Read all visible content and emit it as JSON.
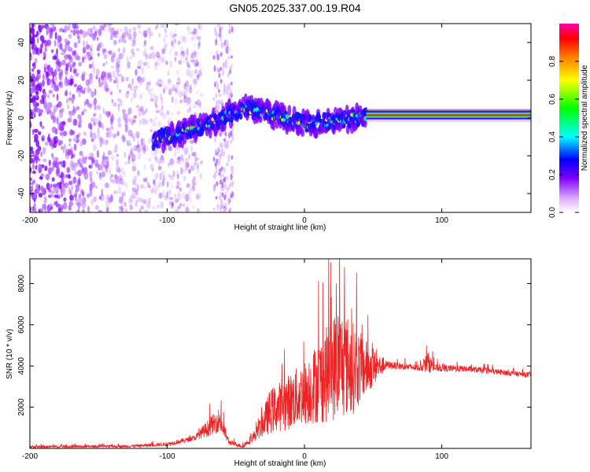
{
  "title": "GN05.2025.337.00.19.R04",
  "colorbar": {
    "label": "Normalized spectral amplitude",
    "ticks": [
      "0.0",
      "0.2",
      "0.4",
      "0.6",
      "0.8"
    ],
    "tick_values": [
      0.0,
      0.2,
      0.4,
      0.6,
      0.8
    ],
    "range": [
      0,
      1
    ]
  },
  "chart_data": [
    {
      "type": "heatmap",
      "title": "",
      "xlabel": "Height of straight line (km)",
      "ylabel": "Frequency (Hz)",
      "xlim": [
        -200,
        165
      ],
      "ylim": [
        -50,
        50
      ],
      "xticks": [
        -200,
        -100,
        0,
        100
      ],
      "xtick_labels": [
        "-200",
        "-100",
        "0",
        "100"
      ],
      "yticks": [
        -40,
        -20,
        0,
        20,
        40
      ],
      "ytick_labels": [
        "-40",
        "-20",
        "0",
        "20",
        "40"
      ],
      "description_of_data": {
        "noise_region_x": [
          -200,
          -90
        ],
        "strong_signal_start_x": -110,
        "signal_center_freq_hz": [
          {
            "x": -110,
            "f": -12
          },
          {
            "x": -90,
            "f": -8
          },
          {
            "x": -70,
            "f": -3
          },
          {
            "x": -55,
            "f": 2
          },
          {
            "x": -40,
            "f": 5
          },
          {
            "x": -20,
            "f": 1
          },
          {
            "x": 0,
            "f": -3
          },
          {
            "x": 20,
            "f": -2
          },
          {
            "x": 45,
            "f": 1
          },
          {
            "x": 165,
            "f": 1
          }
        ],
        "line_region_x": [
          45,
          165
        ],
        "line_freq_hz": 1.5,
        "vertical_stripe_x": [
          -66,
          -52
        ]
      }
    },
    {
      "type": "line",
      "title": "",
      "xlabel": "Height of straight line (km)",
      "ylabel": "SNR (10 * v/v)",
      "xlim": [
        -200,
        165
      ],
      "ylim": [
        0,
        9200
      ],
      "xticks": [
        -200,
        -100,
        0,
        100
      ],
      "xtick_labels": [
        "-200",
        "-100",
        "0",
        "100"
      ],
      "yticks": [
        2000,
        4000,
        6000,
        8000
      ],
      "ytick_labels": [
        "2000",
        "4000",
        "6000",
        "8000"
      ],
      "color": "#ee2222",
      "series": [
        {
          "name": "SNR",
          "envelope": [
            {
              "x": -200,
              "base": 80,
              "amp": 100
            },
            {
              "x": -130,
              "base": 100,
              "amp": 100
            },
            {
              "x": -100,
              "base": 200,
              "amp": 150
            },
            {
              "x": -80,
              "base": 500,
              "amp": 200
            },
            {
              "x": -70,
              "base": 1000,
              "amp": 700
            },
            {
              "x": -62,
              "base": 1400,
              "amp": 1000
            },
            {
              "x": -55,
              "base": 300,
              "amp": 200
            },
            {
              "x": -45,
              "base": 100,
              "amp": 150
            },
            {
              "x": -35,
              "base": 700,
              "amp": 500
            },
            {
              "x": -25,
              "base": 1800,
              "amp": 1800
            },
            {
              "x": -10,
              "base": 2300,
              "amp": 2300
            },
            {
              "x": 0,
              "base": 2700,
              "amp": 2600
            },
            {
              "x": 15,
              "base": 3500,
              "amp": 3800
            },
            {
              "x": 25,
              "base": 4200,
              "amp": 4700
            },
            {
              "x": 35,
              "base": 3900,
              "amp": 3800
            },
            {
              "x": 50,
              "base": 3900,
              "amp": 1500
            },
            {
              "x": 60,
              "base": 4050,
              "amp": 300
            },
            {
              "x": 85,
              "base": 3900,
              "amp": 250
            },
            {
              "x": 90,
              "base": 4200,
              "amp": 900
            },
            {
              "x": 95,
              "base": 3900,
              "amp": 300
            },
            {
              "x": 120,
              "base": 3850,
              "amp": 250
            },
            {
              "x": 165,
              "base": 3550,
              "amp": 200
            }
          ]
        }
      ]
    }
  ]
}
